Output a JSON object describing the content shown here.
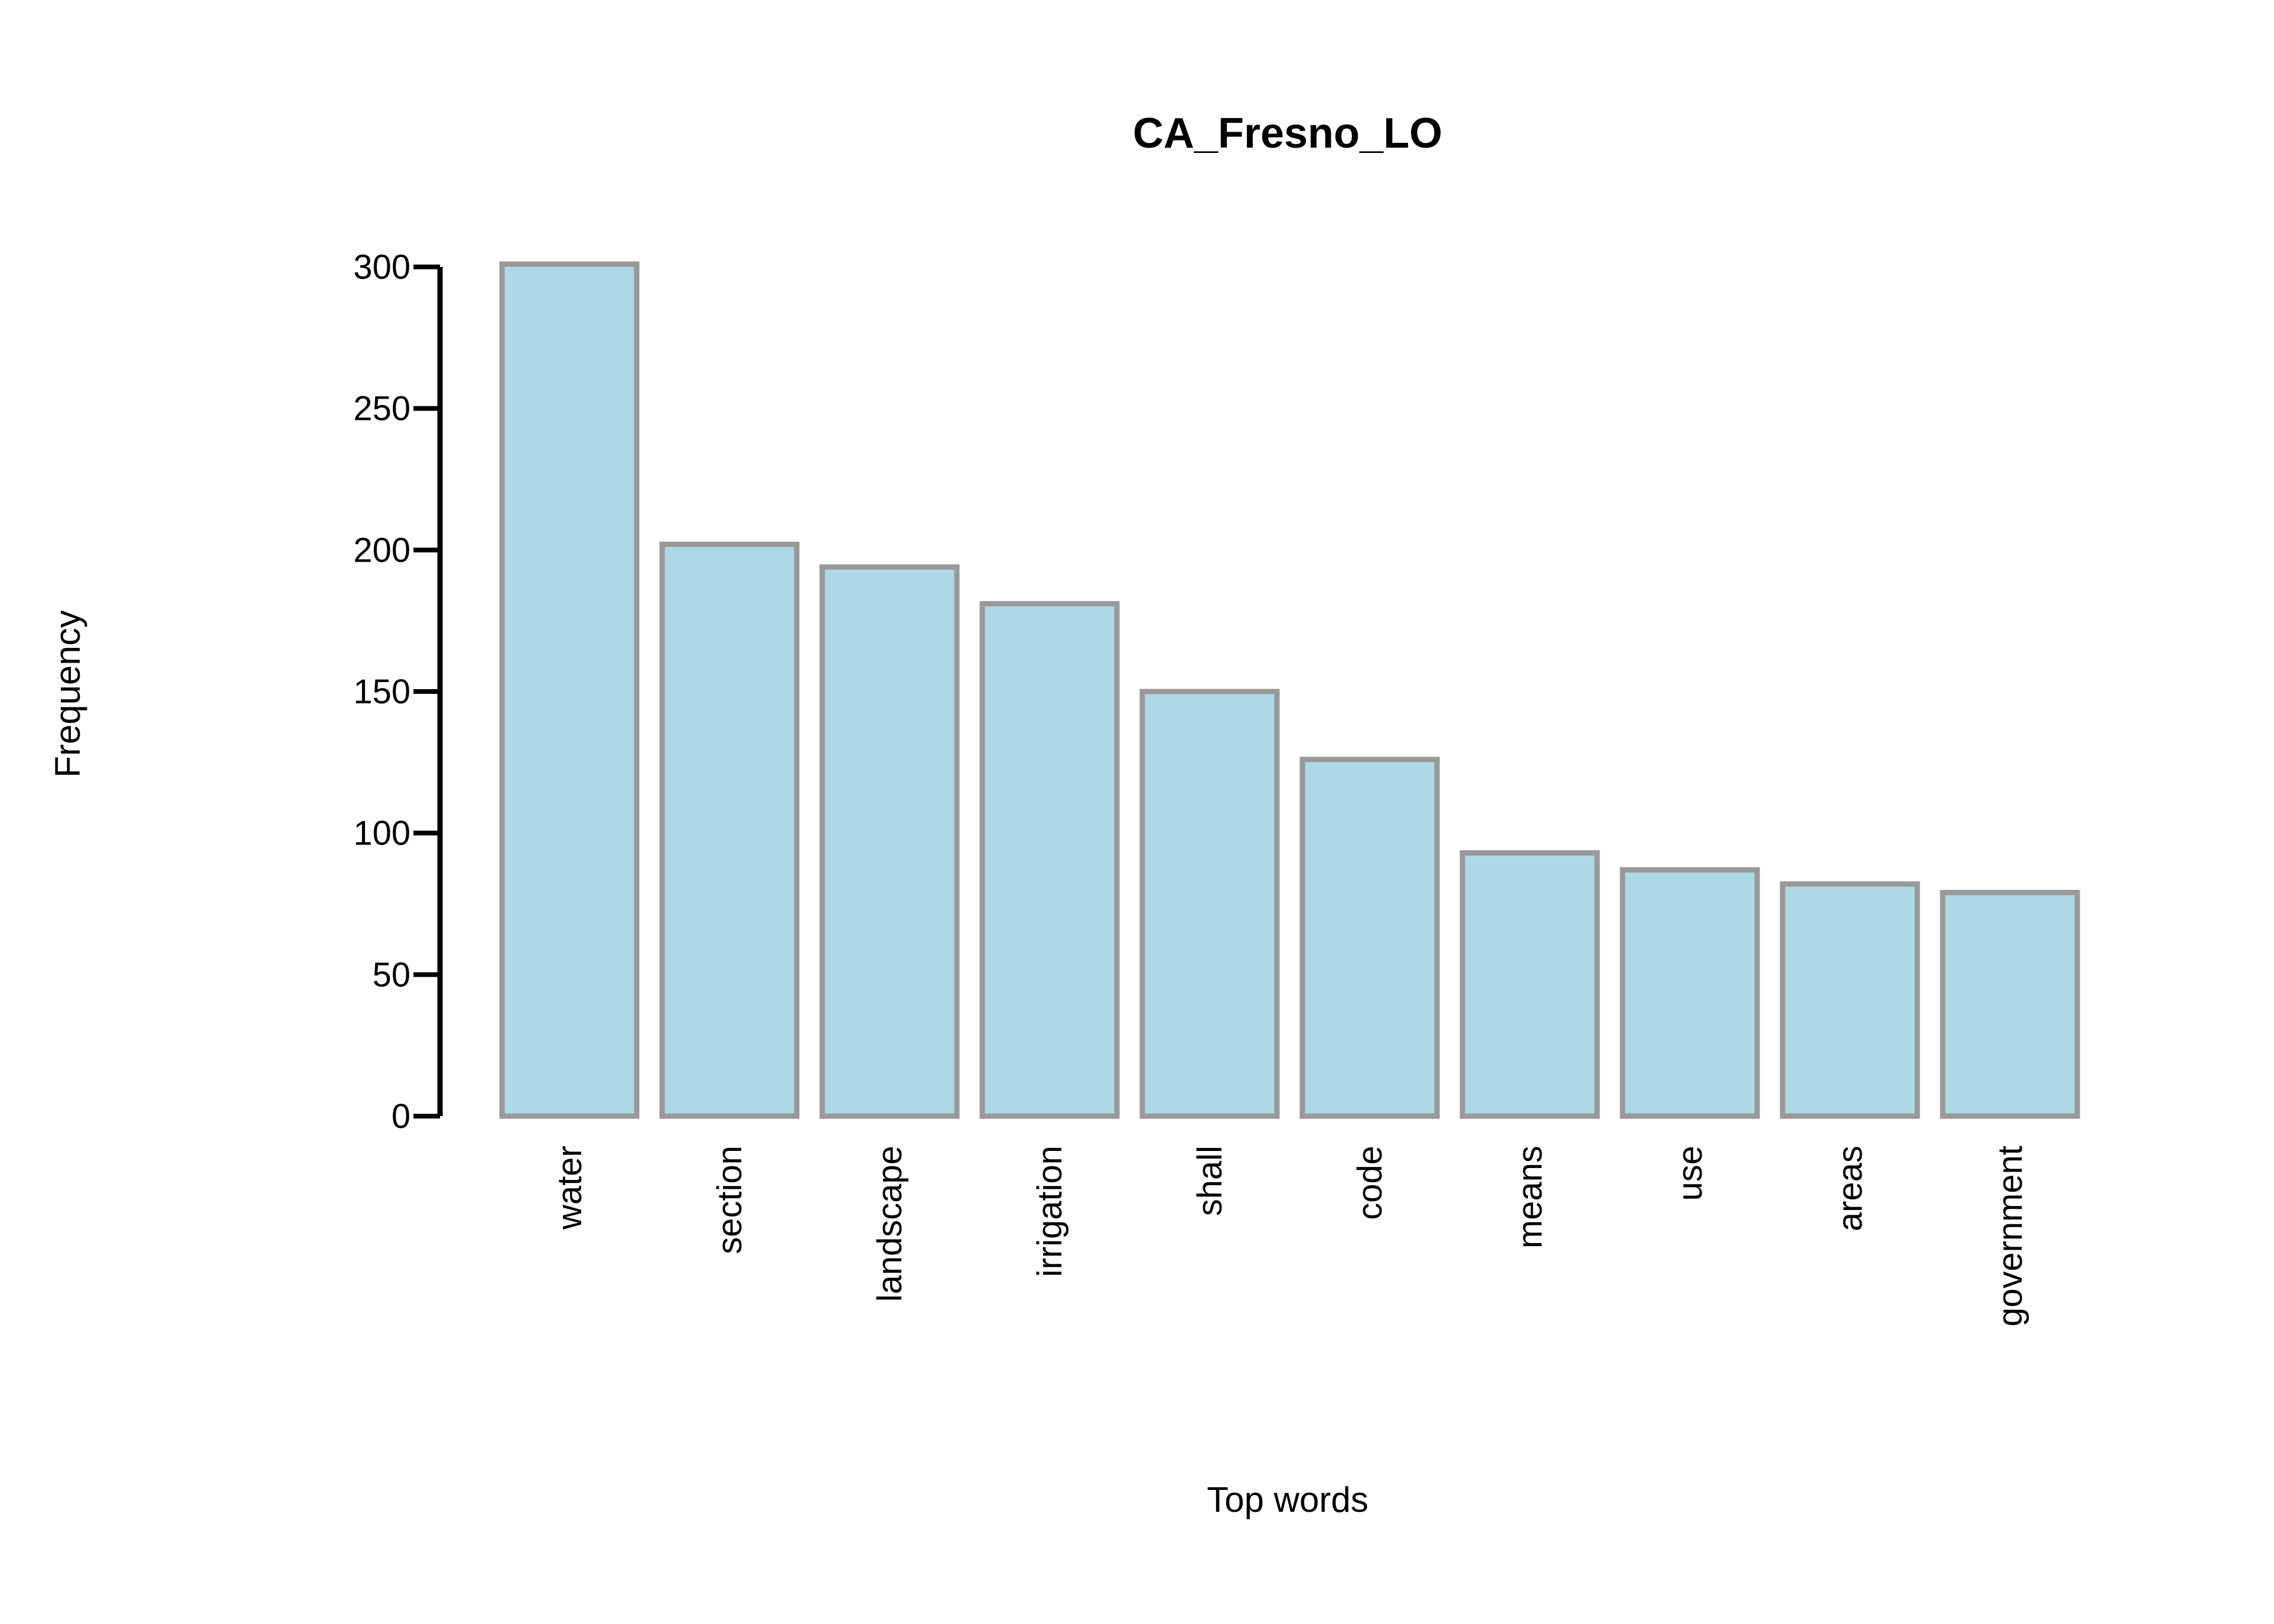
{
  "chart_data": {
    "type": "bar",
    "title": "CA_Fresno_LO",
    "xlabel": "Top words",
    "ylabel": "Frequency",
    "categories": [
      "water",
      "section",
      "landscape",
      "irrigation",
      "shall",
      "code",
      "means",
      "use",
      "areas",
      "government"
    ],
    "values": [
      301,
      202,
      194,
      181,
      150,
      126,
      93,
      87,
      82,
      79
    ],
    "ylim": [
      0,
      300
    ],
    "yticks": [
      "0",
      "50",
      "100",
      "150",
      "200",
      "250",
      "300"
    ],
    "grid": false,
    "legend": "none",
    "colors": {
      "bar_fill": "#add8e6",
      "bar_stroke": "#999999",
      "axis": "#000000"
    }
  }
}
